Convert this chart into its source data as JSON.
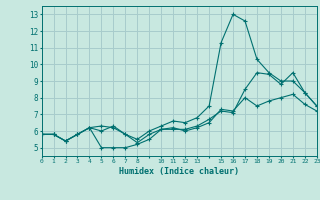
{
  "xlabel": "Humidex (Indice chaleur)",
  "ylabel": "",
  "bg_color": "#c8e8e0",
  "grid_color": "#a8cccc",
  "line_color": "#007070",
  "xlim": [
    0,
    23
  ],
  "ylim": [
    4.5,
    13.5
  ],
  "xtick_labels": [
    "0",
    "1",
    "2",
    "3",
    "4",
    "5",
    "6",
    "7",
    "8",
    "",
    "10",
    "11",
    "12",
    "13",
    "",
    "15",
    "16",
    "17",
    "18",
    "19",
    "20",
    "21",
    "22",
    "23"
  ],
  "yticks": [
    5,
    6,
    7,
    8,
    9,
    10,
    11,
    12,
    13
  ],
  "series": [
    {
      "x": [
        0,
        1,
        2,
        3,
        4,
        5,
        6,
        7,
        8,
        9,
        10,
        11,
        12,
        13,
        14,
        15,
        16,
        17,
        18,
        19,
        20,
        21,
        22,
        23
      ],
      "y": [
        5.8,
        5.8,
        5.4,
        5.8,
        6.2,
        6.0,
        6.3,
        5.8,
        5.5,
        6.0,
        6.3,
        6.6,
        6.5,
        6.8,
        7.5,
        11.3,
        13.0,
        12.6,
        10.3,
        9.5,
        9.0,
        9.0,
        8.3,
        7.5
      ]
    },
    {
      "x": [
        0,
        1,
        2,
        3,
        4,
        5,
        6,
        7,
        8,
        9,
        10,
        11,
        12,
        13,
        14,
        15,
        16,
        17,
        18,
        19,
        20,
        21,
        22,
        23
      ],
      "y": [
        5.8,
        5.8,
        5.4,
        5.8,
        6.2,
        6.3,
        6.2,
        5.8,
        5.3,
        5.8,
        6.1,
        6.1,
        6.1,
        6.3,
        6.7,
        7.2,
        7.1,
        8.5,
        9.5,
        9.4,
        8.8,
        9.5,
        8.3,
        7.5
      ]
    },
    {
      "x": [
        0,
        1,
        2,
        3,
        4,
        5,
        6,
        7,
        8,
        9,
        10,
        11,
        12,
        13,
        14,
        15,
        16,
        17,
        18,
        19,
        20,
        21,
        22,
        23
      ],
      "y": [
        5.8,
        5.8,
        5.4,
        5.8,
        6.2,
        5.0,
        5.0,
        5.0,
        5.2,
        5.5,
        6.1,
        6.2,
        6.0,
        6.2,
        6.5,
        7.3,
        7.2,
        8.0,
        7.5,
        7.8,
        8.0,
        8.2,
        7.6,
        7.2
      ]
    }
  ]
}
